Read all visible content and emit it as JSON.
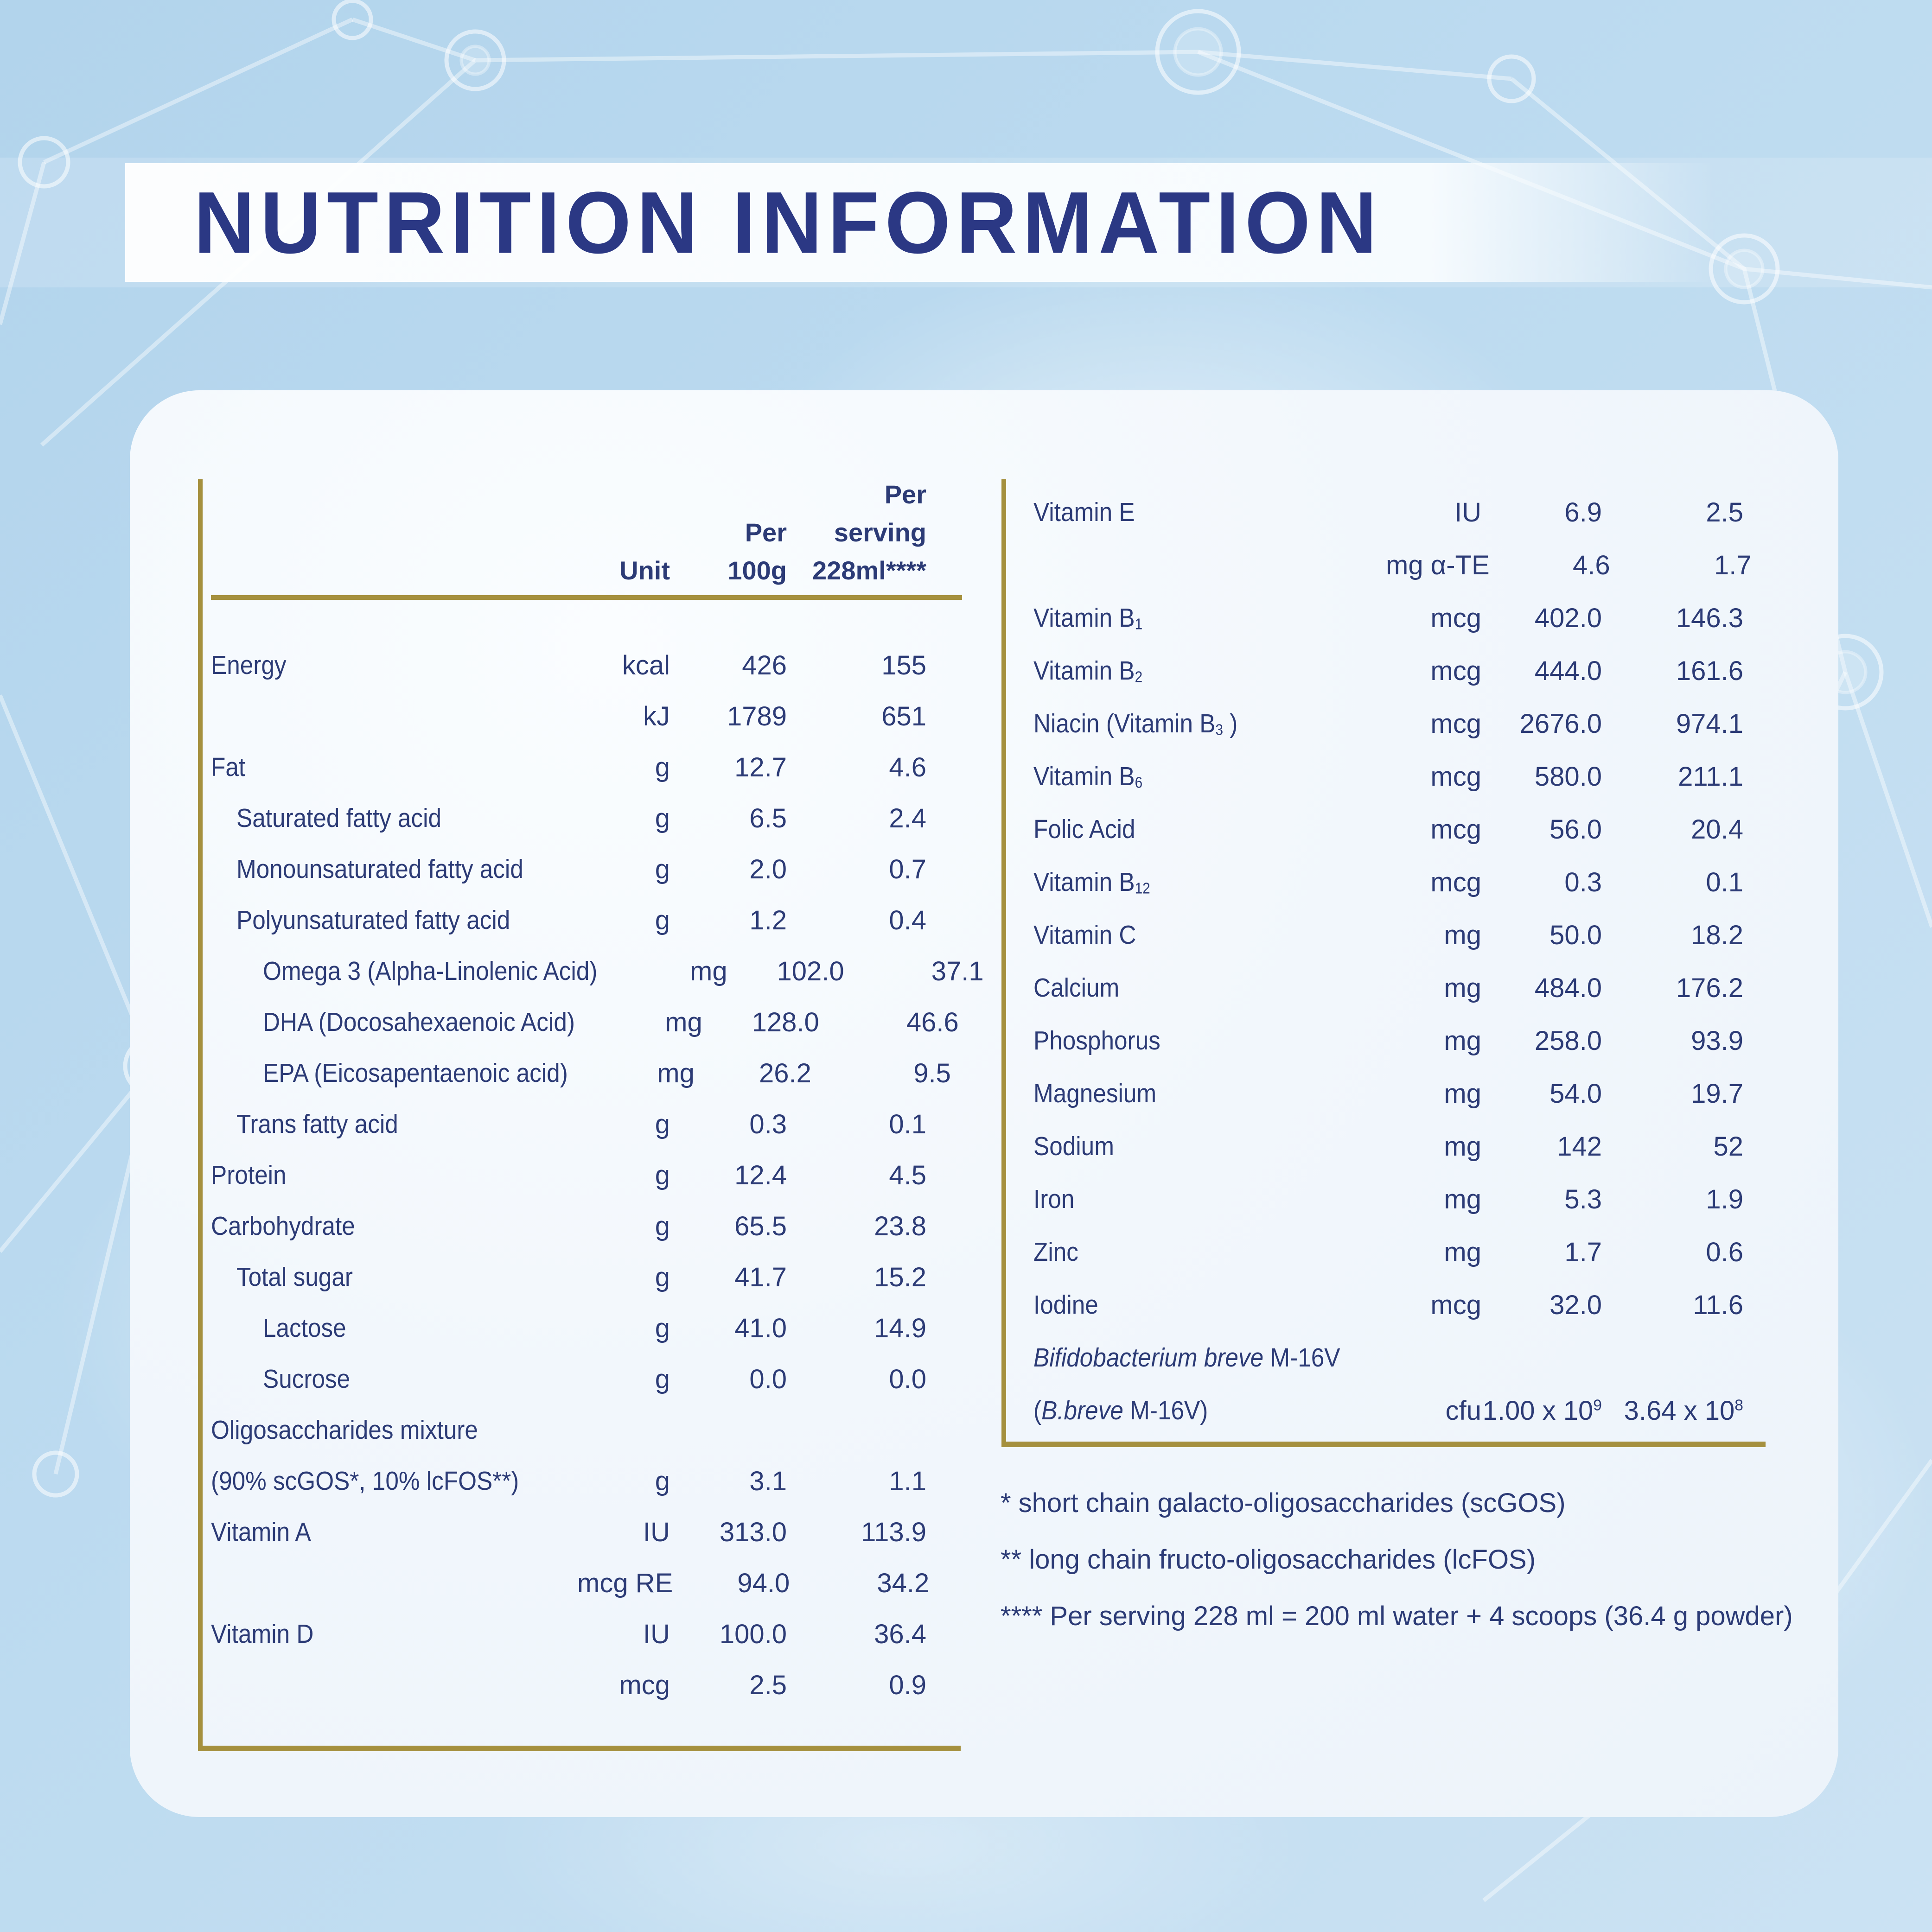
{
  "title": "NUTRITION INFORMATION",
  "colors": {
    "background_blue": "#bcdaef",
    "banner_white": "#fafdff",
    "title_navy": "#2b3884",
    "text_navy": "#2c3b76",
    "rule_gold": "#a5903e",
    "card_white": "#f2f7fc"
  },
  "table": {
    "header": {
      "unit": "Unit",
      "per_100g": [
        "Per",
        "100g"
      ],
      "per_serving": [
        "Per",
        "serving",
        "228ml****"
      ]
    },
    "left_rows": [
      {
        "label": "Energy",
        "indent": 0,
        "unit": "kcal",
        "per_100g": "426",
        "per_serving": "155"
      },
      {
        "label": "",
        "indent": 0,
        "unit": "kJ",
        "per_100g": "1789",
        "per_serving": "651"
      },
      {
        "label": "Fat",
        "indent": 0,
        "unit": "g",
        "per_100g": "12.7",
        "per_serving": "4.6"
      },
      {
        "label": "Saturated fatty acid",
        "indent": 1,
        "unit": "g",
        "per_100g": "6.5",
        "per_serving": "2.4"
      },
      {
        "label": "Monounsaturated fatty acid",
        "indent": 1,
        "unit": "g",
        "per_100g": "2.0",
        "per_serving": "0.7"
      },
      {
        "label": "Polyunsaturated fatty acid",
        "indent": 1,
        "unit": "g",
        "per_100g": "1.2",
        "per_serving": "0.4"
      },
      {
        "label": "Omega 3 (Alpha-Linolenic Acid)",
        "indent": 2,
        "unit": "mg",
        "per_100g": "102.0",
        "per_serving": "37.1"
      },
      {
        "label": "DHA (Docosahexaenoic Acid)",
        "indent": 2,
        "unit": "mg",
        "per_100g": "128.0",
        "per_serving": "46.6"
      },
      {
        "label": "EPA (Eicosapentaenoic acid)",
        "indent": 2,
        "unit": "mg",
        "per_100g": "26.2",
        "per_serving": "9.5"
      },
      {
        "label": "Trans fatty acid",
        "indent": 1,
        "unit": "g",
        "per_100g": "0.3",
        "per_serving": "0.1"
      },
      {
        "label": "Protein",
        "indent": 0,
        "unit": "g",
        "per_100g": "12.4",
        "per_serving": "4.5"
      },
      {
        "label": "Carbohydrate",
        "indent": 0,
        "unit": "g",
        "per_100g": "65.5",
        "per_serving": "23.8"
      },
      {
        "label": "Total sugar",
        "indent": 1,
        "unit": "g",
        "per_100g": "41.7",
        "per_serving": "15.2"
      },
      {
        "label": "Lactose",
        "indent": 2,
        "unit": "g",
        "per_100g": "41.0",
        "per_serving": "14.9"
      },
      {
        "label": "Sucrose",
        "indent": 2,
        "unit": "g",
        "per_100g": "0.0",
        "per_serving": "0.0"
      },
      {
        "label": "Oligosaccharides mixture",
        "indent": 0,
        "unit": "",
        "per_100g": "",
        "per_serving": ""
      },
      {
        "label": "(90% scGOS*, 10% lcFOS**)",
        "indent": 0,
        "unit": "g",
        "per_100g": "3.1",
        "per_serving": "1.1"
      },
      {
        "label": "Vitamin A",
        "indent": 0,
        "unit": "IU",
        "per_100g": "313.0",
        "per_serving": "113.9"
      },
      {
        "label": "",
        "indent": 0,
        "unit": "mcg RE",
        "per_100g": "94.0",
        "per_serving": "34.2"
      },
      {
        "label": "Vitamin D",
        "indent": 0,
        "unit": "IU",
        "per_100g": "100.0",
        "per_serving": "36.4"
      },
      {
        "label": "",
        "indent": 0,
        "unit": "mcg",
        "per_100g": "2.5",
        "per_serving": "0.9"
      }
    ],
    "right_rows": [
      {
        "label": "Vitamin E",
        "indent": 0,
        "unit": "IU",
        "per_100g": "6.9",
        "per_serving": "2.5"
      },
      {
        "label": "",
        "indent": 0,
        "unit": "mg α-TE",
        "per_100g": "4.6",
        "per_serving": "1.7"
      },
      {
        "label": "Vitamin B~1~",
        "indent": 0,
        "unit": "mcg",
        "per_100g": "402.0",
        "per_serving": "146.3"
      },
      {
        "label": "Vitamin B~2~",
        "indent": 0,
        "unit": "mcg",
        "per_100g": "444.0",
        "per_serving": "161.6"
      },
      {
        "label": "Niacin (Vitamin B~3~ )",
        "indent": 0,
        "unit": "mcg",
        "per_100g": "2676.0",
        "per_serving": "974.1"
      },
      {
        "label": "Vitamin B~6~",
        "indent": 0,
        "unit": "mcg",
        "per_100g": "580.0",
        "per_serving": "211.1"
      },
      {
        "label": "Folic Acid",
        "indent": 0,
        "unit": "mcg",
        "per_100g": "56.0",
        "per_serving": "20.4"
      },
      {
        "label": "Vitamin B~12~",
        "indent": 0,
        "unit": "mcg",
        "per_100g": "0.3",
        "per_serving": "0.1"
      },
      {
        "label": "Vitamin C",
        "indent": 0,
        "unit": "mg",
        "per_100g": "50.0",
        "per_serving": "18.2"
      },
      {
        "label": "Calcium",
        "indent": 0,
        "unit": "mg",
        "per_100g": "484.0",
        "per_serving": "176.2"
      },
      {
        "label": "Phosphorus",
        "indent": 0,
        "unit": "mg",
        "per_100g": "258.0",
        "per_serving": "93.9"
      },
      {
        "label": "Magnesium",
        "indent": 0,
        "unit": "mg",
        "per_100g": "54.0",
        "per_serving": "19.7"
      },
      {
        "label": "Sodium",
        "indent": 0,
        "unit": "mg",
        "per_100g": "142",
        "per_serving": "52"
      },
      {
        "label": "Iron",
        "indent": 0,
        "unit": "mg",
        "per_100g": "5.3",
        "per_serving": "1.9"
      },
      {
        "label": "Zinc",
        "indent": 0,
        "unit": "mg",
        "per_100g": "1.7",
        "per_serving": "0.6"
      },
      {
        "label": "Iodine",
        "indent": 0,
        "unit": "mcg",
        "per_100g": "32.0",
        "per_serving": "11.6"
      },
      {
        "label": "_Bifidobacterium breve_ M-16V",
        "indent": 0,
        "unit": "",
        "per_100g": "",
        "per_serving": ""
      },
      {
        "label": "(_B.breve_ M-16V)",
        "indent": 0,
        "unit": "cfu",
        "per_100g": "1.00 x 10^9^",
        "per_serving": "3.64 x 10^8^"
      }
    ]
  },
  "footnotes": [
    "* short chain galacto-oligosaccharides (scGOS)",
    "** long chain fructo-oligosaccharides (lcFOS)",
    "**** Per serving 228 ml = 200 ml water + 4 scoops (36.4 g powder)"
  ]
}
